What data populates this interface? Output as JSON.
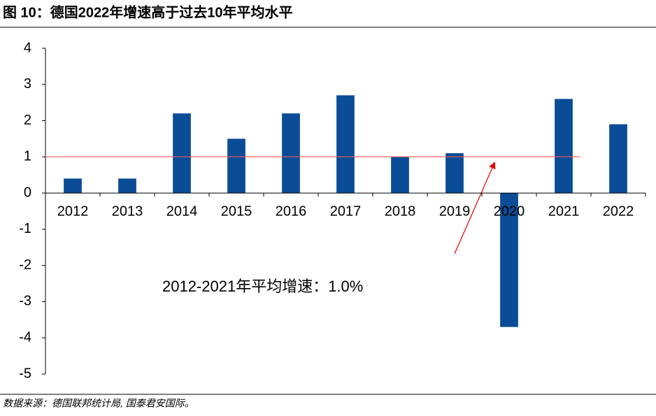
{
  "title": "图 10：德国2022年增速高于过去10年平均水平",
  "source": "数据来源：德国联邦统计局, 国泰君安国际。",
  "chart_data": {
    "type": "bar",
    "categories": [
      "2012",
      "2013",
      "2014",
      "2015",
      "2016",
      "2017",
      "2018",
      "2019",
      "2020",
      "2021",
      "2022"
    ],
    "values": [
      0.4,
      0.4,
      2.2,
      1.5,
      2.2,
      2.7,
      1.0,
      1.1,
      -3.7,
      2.6,
      1.9
    ],
    "color": "#0a4c96",
    "ylim": [
      -5,
      4
    ],
    "yticks": [
      -5,
      -4,
      -3,
      -2,
      -1,
      0,
      1,
      2,
      3,
      4
    ],
    "average": {
      "value": 1.0,
      "color": "#f05a5a",
      "annotation": "2012-2021年平均增速：1.0%"
    }
  }
}
